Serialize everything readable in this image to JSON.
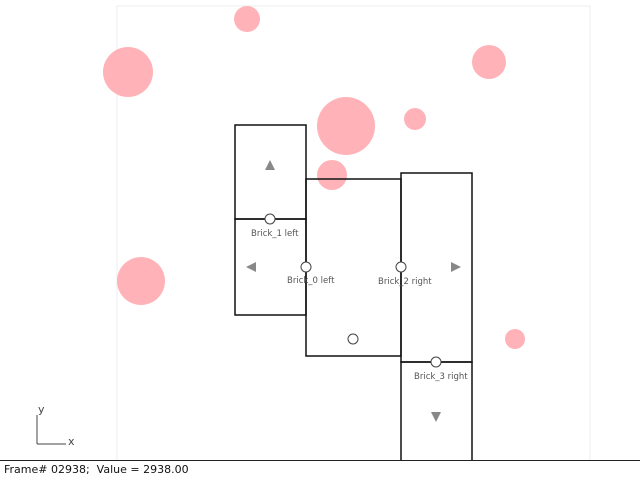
{
  "scene": {
    "background": "#ffffff",
    "frame_border_color": "#eeeeee",
    "brick_stroke": "#111111",
    "ball_color": "#ffb3b8",
    "icon_color": "#888888",
    "bricks": [
      {
        "name": "brick-1",
        "label": "Brick_1 left",
        "arrow": "up"
      },
      {
        "name": "brick-0",
        "label": "Brick_0 left"
      },
      {
        "name": "brick-2",
        "label": "Brick_2 right",
        "arrow": "right"
      },
      {
        "name": "brick-3",
        "label": "Brick_3 right",
        "arrow": "down"
      }
    ],
    "left_arrow_icon": "triangle-left-icon",
    "axis": {
      "x_label": "x",
      "y_label": "y"
    }
  },
  "status": {
    "text": "Frame# 02938;  Value = 2938.00"
  }
}
